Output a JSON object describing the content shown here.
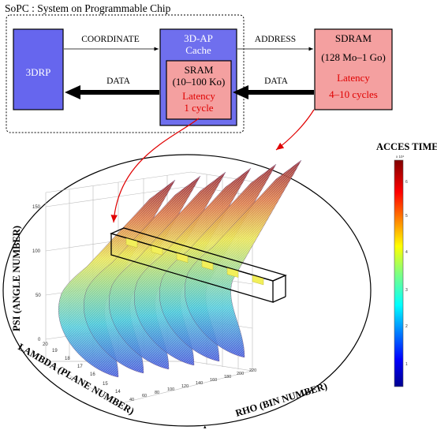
{
  "header": {
    "sopc_title": "SoPC : System on Programmable Chip"
  },
  "blocks": {
    "drp": {
      "label": "3DRP",
      "color": "#6666ee"
    },
    "cache": {
      "title_line1": "3D-AP",
      "title_line2": "Cache",
      "color": "#6f6fee"
    },
    "sram": {
      "line1": "SRAM",
      "line2": "(10–100 Ko)",
      "latency_line1": "Latency",
      "latency_line2": "1 cycle",
      "color": "#f4a0a0"
    },
    "sdram": {
      "line1": "SDRAM",
      "line2": "(128 Mo–1 Go)",
      "latency_line1": "Latency",
      "latency_line2": "4–10 cycles",
      "color": "#f4a0a0"
    }
  },
  "arrows": {
    "coordinate": "COORDINATE",
    "address": "ADDRESS",
    "data_left": "DATA",
    "data_right": "DATA"
  },
  "plot": {
    "colorbar_title": "ACCES TIME",
    "colorbar_exponent": "x 10⁴",
    "colorbar_ticks": [
      "6",
      "5",
      "4",
      "3",
      "2",
      "1"
    ],
    "z_axis_label": "PSI (ANGLE NUMBER)",
    "x_axis_label": "LAMBDA (PLANE NUMBER)",
    "y_axis_label": "RHO (BIN NUMBER)",
    "z_ticks": [
      "150",
      "100",
      "50",
      "0"
    ],
    "lambda_ticks": [
      "20",
      "19",
      "18",
      "17",
      "16",
      "15",
      "14"
    ],
    "rho_ticks": [
      "40",
      "60",
      "80",
      "100",
      "120",
      "140",
      "160",
      "180",
      "200",
      "220"
    ],
    "colors": {
      "low": "#1a2fd6",
      "mid": "#e8e84a",
      "high": "#8b1020"
    }
  }
}
